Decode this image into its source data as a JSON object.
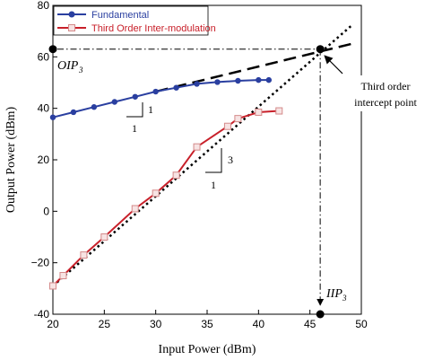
{
  "chart_data": {
    "type": "line",
    "xlabel": "Input Power (dBm)",
    "ylabel": "Output Power (dBm)",
    "xlim": [
      20,
      50
    ],
    "ylim": [
      -40,
      80
    ],
    "x_ticks": [
      "20",
      "25",
      "30",
      "35",
      "40",
      "45",
      "50"
    ],
    "y_ticks": [
      "-40",
      "−20",
      "0",
      "20",
      "40",
      "60",
      "80"
    ],
    "grid": false,
    "legend_position": "top-left",
    "series": [
      {
        "name": "Fundamental",
        "color": "#2a3fa0",
        "marker": "circle",
        "x": [
          20,
          22,
          24,
          26,
          28,
          30,
          32,
          34,
          36,
          38,
          40,
          41
        ],
        "y": [
          36.5,
          38.5,
          40.5,
          42.5,
          44.5,
          46.5,
          48,
          49.5,
          50.2,
          50.7,
          51,
          51
        ]
      },
      {
        "name": "Third Order Inter-modulation",
        "color": "#c8202a",
        "marker": "square",
        "x": [
          20,
          21,
          23,
          25,
          28,
          30,
          32,
          34,
          37,
          38,
          40,
          42
        ],
        "y": [
          -29,
          -25,
          -17,
          -10,
          1,
          7,
          14,
          25,
          33,
          36,
          38.5,
          39
        ]
      }
    ],
    "extrapolations": [
      {
        "name": "fundamental-extrapolation",
        "style": "dashed",
        "x": [
          30,
          49
        ],
        "y": [
          46.5,
          65
        ]
      },
      {
        "name": "im3-extrapolation",
        "style": "dotted",
        "x": [
          20,
          49
        ],
        "y": [
          -29,
          72
        ]
      }
    ],
    "intercept_point": {
      "x": 46,
      "y": 63
    },
    "annotations": {
      "oip_label": "OIP",
      "oip_sub": "3",
      "iip_label": "IIP",
      "iip_sub": "3",
      "intercept_label_line1": "Third order",
      "intercept_label_line2": "intercept point",
      "slope_fund_rise": "1",
      "slope_fund_run": "1",
      "slope_im3_rise": "3",
      "slope_im3_run": "1"
    }
  }
}
